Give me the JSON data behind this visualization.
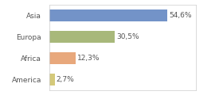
{
  "categories": [
    "Asia",
    "Europa",
    "Africa",
    "America"
  ],
  "values": [
    54.6,
    30.5,
    12.3,
    2.7
  ],
  "labels": [
    "54,6%",
    "30,5%",
    "12,3%",
    "2,7%"
  ],
  "bar_colors": [
    "#7393C8",
    "#A8B87A",
    "#E8A87C",
    "#D4C97A"
  ],
  "background_color": "#ffffff",
  "border_color": "#cccccc",
  "xlim": [
    0,
    68
  ],
  "bar_height": 0.55,
  "label_fontsize": 6.5,
  "category_fontsize": 6.5,
  "text_color": "#555555"
}
